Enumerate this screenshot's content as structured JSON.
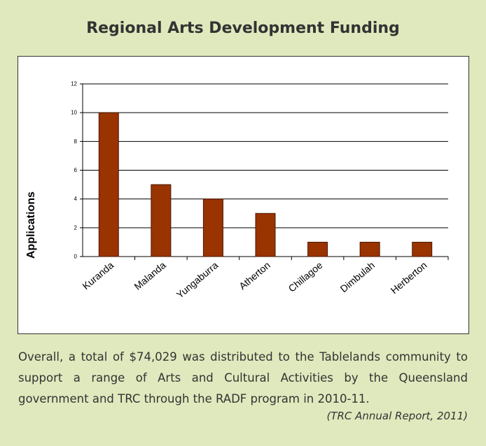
{
  "chart_data": {
    "type": "bar",
    "title": "Regional Arts Development Funding",
    "y_label": "Applications",
    "categories": [
      "Kuranda",
      "Malanda",
      "Yungaburra",
      "Atherton",
      "Chillagoe",
      "Dimbulah",
      "Herberton"
    ],
    "values": [
      10,
      5,
      4,
      3,
      1,
      1,
      1
    ],
    "color": "#993300",
    "ylim": [
      0,
      12
    ],
    "yticks": [
      0,
      2,
      4,
      6,
      8,
      10,
      12
    ],
    "grid": true
  },
  "text": "Overall, a total of $74,029 was distributed to the Tablelands community to support a range of Arts and Cultural Activities by the Queensland government and TRC through the RADF program in 2010-11.",
  "citation": "(TRC Annual Report, 2011)"
}
